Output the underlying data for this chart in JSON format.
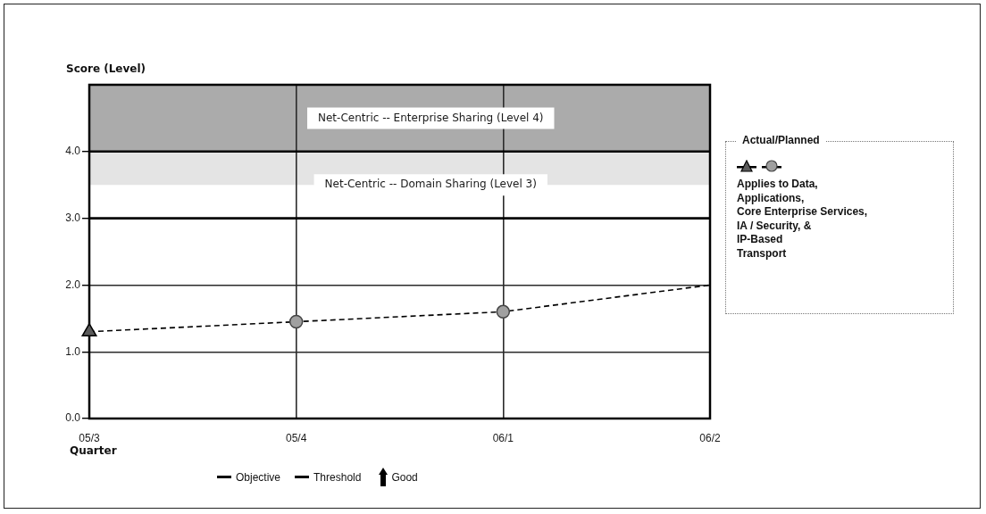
{
  "chart_data": {
    "type": "line",
    "ylabel": "Score (Level)",
    "xlabel": "Quarter",
    "legend_title": "Actual/Planned",
    "categories": [
      "05/3",
      "05/4",
      "06/1",
      "06/2"
    ],
    "series": [
      {
        "name": "Objective",
        "type": "line",
        "color": "#000000",
        "line_style": "solid",
        "marker": "none",
        "values": [
          4,
          4,
          4,
          4
        ]
      },
      {
        "name": "Threshold",
        "type": "line",
        "color": "#000000",
        "line_style": "solid",
        "marker": "none",
        "values": [
          3,
          3,
          3,
          3
        ]
      },
      {
        "type": "line",
        "color": "#000000",
        "line_style": "dashed",
        "marker": "none",
        "values": [
          1.3,
          1.45,
          1.6,
          2.0
        ]
      },
      {
        "type": "scatter",
        "color": "#5a5a5a",
        "marker": "triangle",
        "values": [
          1.3,
          null,
          null,
          null
        ]
      },
      {
        "type": "scatter",
        "color": "#a0a0a0",
        "marker": "circle",
        "values": [
          null,
          1.45,
          1.6,
          null
        ]
      }
    ],
    "ylim": [
      0,
      5
    ],
    "yticks": [
      {
        "value": 0,
        "label": "0.0"
      },
      {
        "value": 1,
        "label": "1.0"
      },
      {
        "value": 2,
        "label": "2.0"
      },
      {
        "value": 3,
        "label": "3.0"
      },
      {
        "value": 4,
        "label": "4.0"
      }
    ],
    "grid": true,
    "legend": "bottom",
    "bands": [
      {
        "axis": "y",
        "from": 4,
        "to": 5,
        "label": "Net-Centric -- Enterprise Sharing (Level 4)",
        "color": "#ababab"
      },
      {
        "axis": "y",
        "from": 3.5,
        "to": 4,
        "label": "Net-Centric -- Domain Sharing (Level 3)",
        "color": "#e4e4e4"
      }
    ],
    "annotations": [
      "Applies to Data,\nApplications,\nCore Enterprise Services,\nIA / Security, &\nIP-Based\nTransport",
      "Good"
    ]
  }
}
